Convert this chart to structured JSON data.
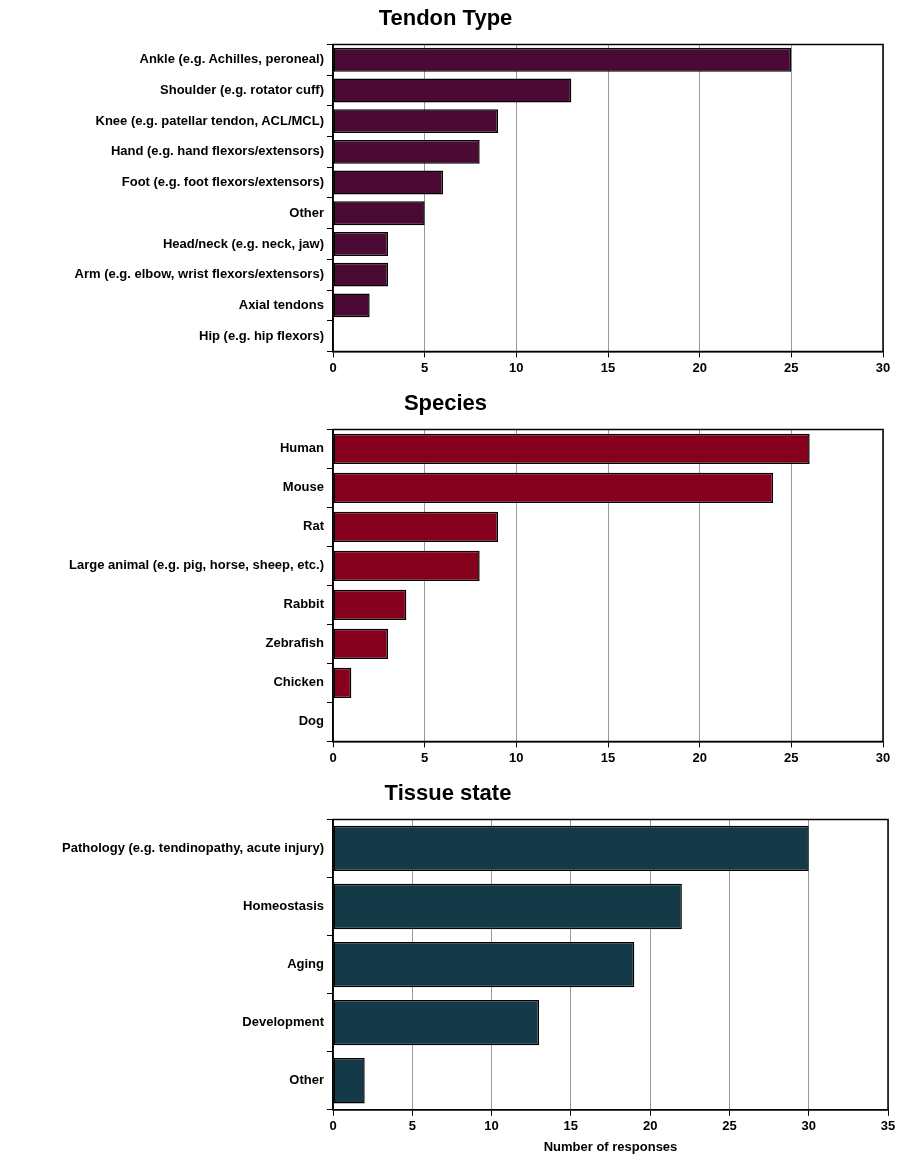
{
  "chart_data": [
    {
      "type": "bar",
      "orientation": "horizontal",
      "title": "Tendon Type",
      "categories": [
        "Ankle (e.g. Achilles, peroneal)",
        "Shoulder (e.g. rotator cuff)",
        "Knee (e.g. patellar tendon, ACL/MCL)",
        "Hand (e.g. hand flexors/extensors)",
        "Foot (e.g. foot flexors/extensors)",
        "Other",
        "Head/neck (e.g. neck, jaw)",
        "Arm (e.g. elbow, wrist flexors/extensors)",
        "Axial tendons",
        "Hip (e.g. hip flexors)"
      ],
      "values": [
        25,
        13,
        9,
        8,
        6,
        5,
        3,
        3,
        2,
        0
      ],
      "color": "#4a0a33",
      "xlim": [
        0,
        30
      ],
      "xticks": [
        0,
        5,
        10,
        15,
        20,
        25,
        30
      ],
      "grid": "x"
    },
    {
      "type": "bar",
      "orientation": "horizontal",
      "title": "Species",
      "categories": [
        "Human",
        "Mouse",
        "Rat",
        "Large animal (e.g. pig, horse, sheep, etc.)",
        "Rabbit",
        "Zebrafish",
        "Chicken",
        "Dog"
      ],
      "values": [
        26,
        24,
        9,
        8,
        4,
        3,
        1,
        0
      ],
      "color": "#85001c",
      "xlim": [
        0,
        30
      ],
      "xticks": [
        0,
        5,
        10,
        15,
        20,
        25,
        30
      ],
      "grid": "x"
    },
    {
      "type": "bar",
      "orientation": "horizontal",
      "title": "Tissue state",
      "categories": [
        "Pathology (e.g. tendinopathy, acute injury)",
        "Homeostasis",
        "Aging",
        "Development",
        "Other"
      ],
      "values": [
        30,
        22,
        19,
        13,
        2
      ],
      "color": "#143a47",
      "xlim": [
        0,
        35
      ],
      "xticks": [
        0,
        5,
        10,
        15,
        20,
        25,
        30,
        35
      ],
      "grid": "x",
      "xlabel": "Number of responses"
    }
  ]
}
